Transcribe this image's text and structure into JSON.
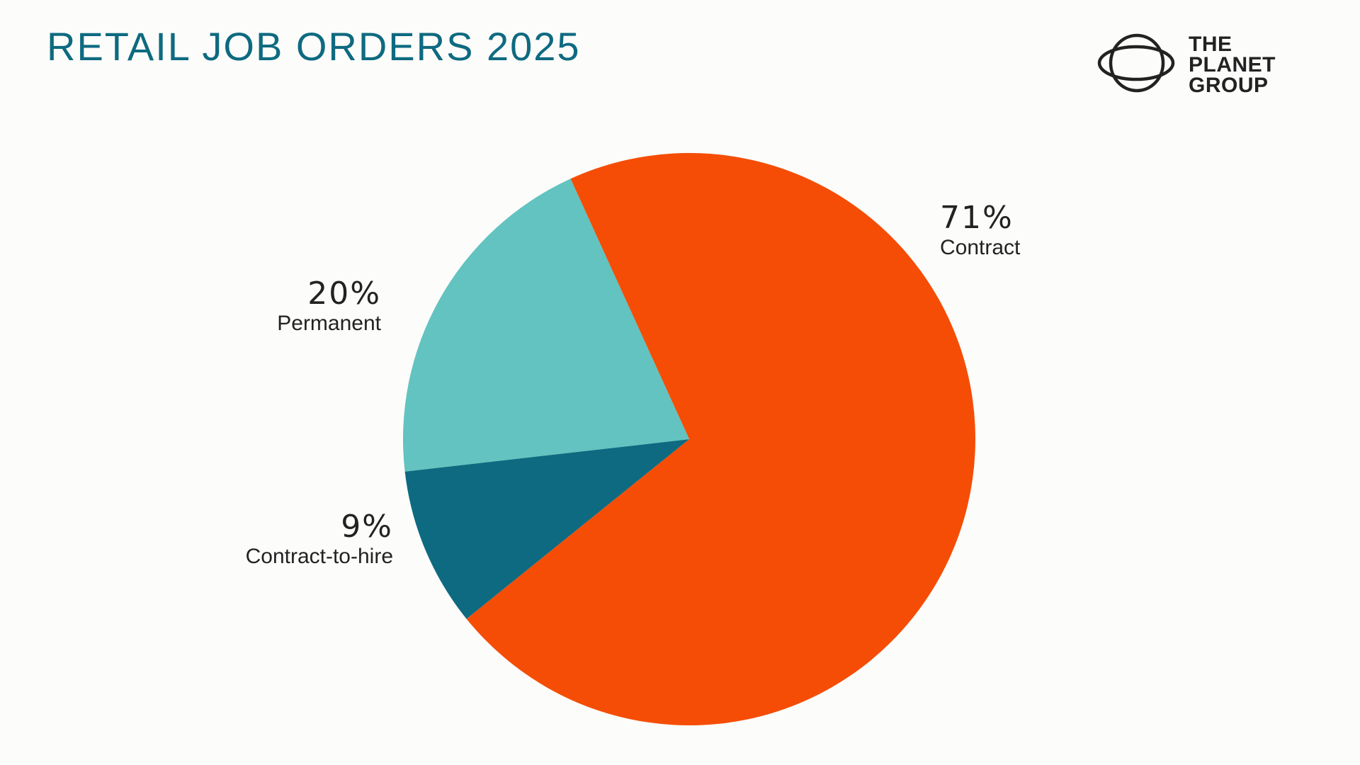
{
  "header": {
    "title": "RETAIL JOB ORDERS 2025"
  },
  "logo": {
    "icon": "planet-ring-icon",
    "lines": [
      "THE",
      "PLANET",
      "GROUP"
    ]
  },
  "chart_data": {
    "type": "pie",
    "title": "RETAIL JOB ORDERS 2025",
    "start_angle_deg": -24.5,
    "direction": "clockwise",
    "slices": [
      {
        "name": "Contract",
        "value": 71,
        "label": "71%",
        "color": "#f54d05"
      },
      {
        "name": "Contract-to-hire",
        "value": 9,
        "label": "9%",
        "color": "#0e6a80"
      },
      {
        "name": "Permanent",
        "value": 20,
        "label": "20%",
        "color": "#62c3c0"
      }
    ]
  }
}
